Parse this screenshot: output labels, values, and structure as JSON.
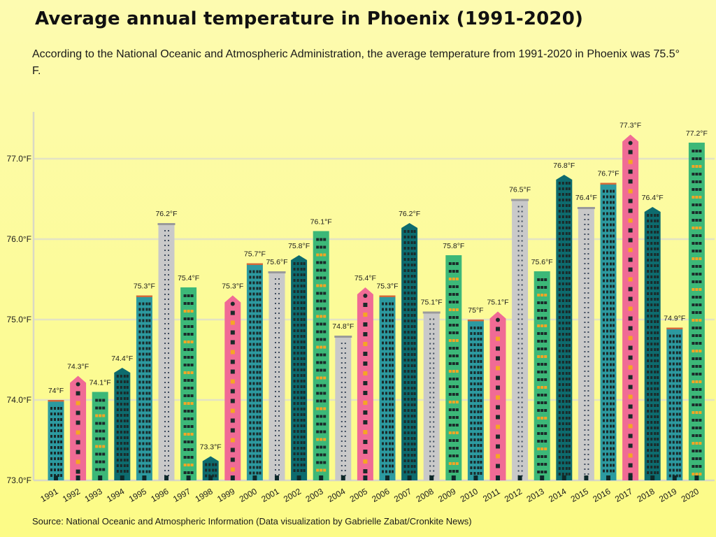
{
  "title": "Average annual temperature in Phoenix (1991-2020)",
  "subtitle": "According to the National Oceanic and Atmospheric Administration, the average temperature from 1991-2020 in Phoenix was 75.5° F.",
  "source": "Source: National Oceanic and Atmospheric Information (Data visualization by Gabrielle Zabat/Cronkite News)",
  "colors": {
    "pink": "#f06b95",
    "green": "#3cb878",
    "teal": "#0d6b6e",
    "lightteal": "#2c9aa0",
    "gray": "#c9c9c9",
    "window_dark": "#1b2a2a",
    "window_orange": "#f6a623",
    "gridline": "#e3e3c4"
  },
  "chart_data": {
    "type": "bar",
    "title": "Average annual temperature in Phoenix (1991-2020)",
    "xlabel": "",
    "ylabel": "",
    "ylim": [
      73.0,
      77.6
    ],
    "yticks": [
      73.0,
      74.0,
      75.0,
      76.0,
      77.0
    ],
    "ytick_labels": [
      "73.0°F",
      "74.0°F",
      "75.0°F",
      "76.0°F",
      "77.0°F"
    ],
    "categories": [
      "1991",
      "1992",
      "1993",
      "1994",
      "1995",
      "1996",
      "1997",
      "1998",
      "1999",
      "2000",
      "2001",
      "2002",
      "2003",
      "2004",
      "2005",
      "2006",
      "2007",
      "2008",
      "2009",
      "2010",
      "2011",
      "2012",
      "2013",
      "2014",
      "2015",
      "2016",
      "2017",
      "2018",
      "2019",
      "2020"
    ],
    "values": [
      74.0,
      74.3,
      74.1,
      74.4,
      75.3,
      76.2,
      75.4,
      73.3,
      75.3,
      75.7,
      75.6,
      75.8,
      76.1,
      74.8,
      75.4,
      75.3,
      76.2,
      75.1,
      75.8,
      75.0,
      75.1,
      76.5,
      75.6,
      76.8,
      76.4,
      76.7,
      77.3,
      76.4,
      74.9,
      77.2
    ],
    "value_labels": [
      "74°F",
      "74.3°F",
      "74.1°F",
      "74.4°F",
      "75.3°F",
      "76.2°F",
      "75.4°F",
      "73.3°F",
      "75.3°F",
      "75.7°F",
      "75.6°F",
      "75.8°F",
      "76.1°F",
      "74.8°F",
      "75.4°F",
      "75.3°F",
      "76.2°F",
      "75.1°F",
      "75.8°F",
      "75°F",
      "75.1°F",
      "76.5°F",
      "75.6°F",
      "76.8°F",
      "76.4°F",
      "76.7°F",
      "77.3°F",
      "76.4°F",
      "74.9°F",
      "77.2°F"
    ],
    "building_styles": [
      "lightteal",
      "pink",
      "green",
      "teal",
      "lightteal",
      "gray",
      "green",
      "teal",
      "pink",
      "lightteal",
      "gray",
      "teal",
      "green",
      "gray",
      "pink",
      "lightteal",
      "teal",
      "gray",
      "green",
      "lightteal",
      "pink",
      "gray",
      "green",
      "teal",
      "gray",
      "lightteal",
      "pink",
      "teal",
      "lightteal",
      "green"
    ],
    "grid": true,
    "legend": "none"
  }
}
